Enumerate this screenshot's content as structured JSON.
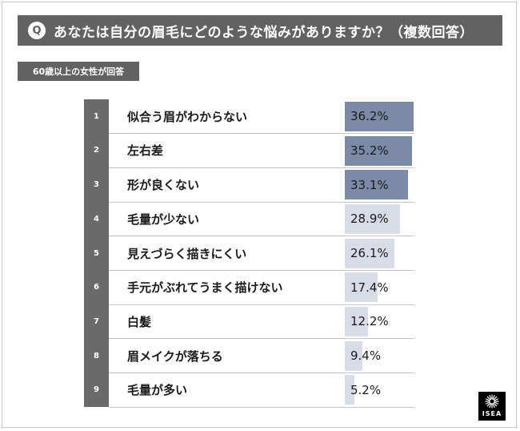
{
  "question": {
    "marker": "Q",
    "text": "あなたは自分の眉毛にどのような悩みがありますか？（複数回答）"
  },
  "badge": {
    "text": "60歳以上の女性が回答"
  },
  "logo": {
    "text": "ISEA"
  },
  "colors": {
    "header_bg": "#626262",
    "bar_top": "#7b8aa6",
    "bar_rest": "#d8dce6",
    "rank_col": "#6a6a6a"
  },
  "chart_data": {
    "type": "bar",
    "orientation": "horizontal",
    "title": "",
    "xlabel": "",
    "ylabel": "",
    "xlim": [
      0,
      36.2
    ],
    "ranks": [
      "1",
      "2",
      "3",
      "4",
      "5",
      "6",
      "7",
      "8",
      "9"
    ],
    "categories": [
      "似合う眉がわからない",
      "左右差",
      "形が良くない",
      "毛量が少ない",
      "見えづらく描きにくい",
      "手元がぶれてうまく描けない",
      "白髪",
      "眉メイクが落ちる",
      "毛量が多い"
    ],
    "values": [
      36.2,
      35.2,
      33.1,
      28.9,
      26.1,
      17.4,
      12.2,
      9.4,
      5.2
    ],
    "value_labels": [
      "36.2%",
      "35.2%",
      "33.1%",
      "28.9%",
      "26.1%",
      "17.4%",
      "12.2%",
      "9.4%",
      "5.2%"
    ],
    "highlighted_top": 3
  }
}
